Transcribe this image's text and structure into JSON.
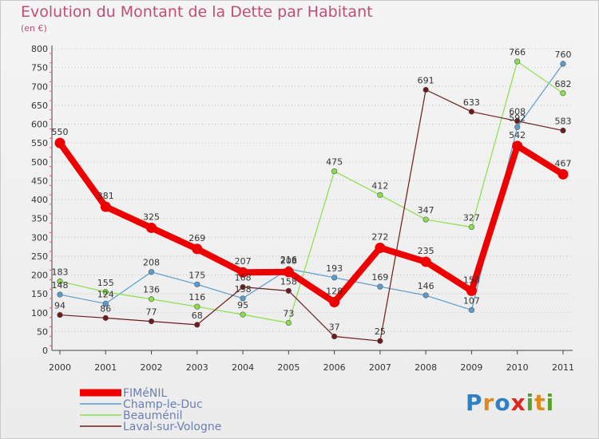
{
  "header": {
    "title": "Evolution du Montant de la Dette par Habitant",
    "unit": "(en €)"
  },
  "brand": {
    "text": "Proxiti",
    "letter_colors": [
      "#2e7fc4",
      "#e08a1e",
      "#2e7fc4",
      "#e0241e",
      "#5aa02c",
      "#e08a1e",
      "#5aa02c"
    ]
  },
  "chart_data": {
    "type": "line",
    "title": "Evolution du Montant de la Dette par Habitant",
    "ylabel": "(en €)",
    "xlabel": "",
    "ylim": [
      0,
      800
    ],
    "y_ticks": [
      0,
      50,
      100,
      150,
      200,
      250,
      300,
      350,
      400,
      450,
      500,
      550,
      600,
      650,
      700,
      750,
      800
    ],
    "categories": [
      "2000",
      "2001",
      "2002",
      "2003",
      "2004",
      "2005",
      "2006",
      "2007",
      "2008",
      "2009",
      "2010",
      "2011"
    ],
    "grid": "horizontal dotted",
    "legend_position": "bottom-left",
    "series": [
      {
        "name": "FIMéNIL",
        "color": "#ee0000",
        "style": "thick",
        "values": [
          550,
          381,
          325,
          269,
          207,
          208,
          128,
          272,
          235,
          158,
          542,
          467
        ],
        "labels": [
          "550",
          "381",
          "325",
          "269",
          "207",
          "208",
          "128",
          "272",
          "235",
          "158",
          "542",
          "467"
        ]
      },
      {
        "name": "Champ-le-Duc",
        "color": "#5b9bd0",
        "style": "thin",
        "values": [
          148,
          124,
          208,
          175,
          138,
          216,
          193,
          169,
          146,
          107,
          592,
          760
        ],
        "labels": [
          "148",
          "124",
          "208",
          "175",
          "138",
          "216",
          "193",
          "169",
          "146",
          "107",
          "592",
          "760"
        ]
      },
      {
        "name": "Beauménil",
        "color": "#88e04a",
        "style": "thin",
        "values": [
          183,
          155,
          136,
          116,
          95,
          73,
          475,
          412,
          347,
          327,
          766,
          682
        ],
        "labels": [
          "183",
          "155",
          "136",
          "116",
          "95",
          "73",
          "475",
          "412",
          "347",
          "327",
          "766",
          "682"
        ]
      },
      {
        "name": "Laval-sur-Vologne",
        "color": "#6e1a1a",
        "style": "thin",
        "values": [
          94,
          86,
          77,
          68,
          168,
          158,
          37,
          25,
          691,
          633,
          608,
          583
        ],
        "labels": [
          "94",
          "86",
          "77",
          "68",
          "168",
          "158",
          "37",
          "25",
          "691",
          "633",
          "608",
          "583"
        ]
      }
    ]
  }
}
